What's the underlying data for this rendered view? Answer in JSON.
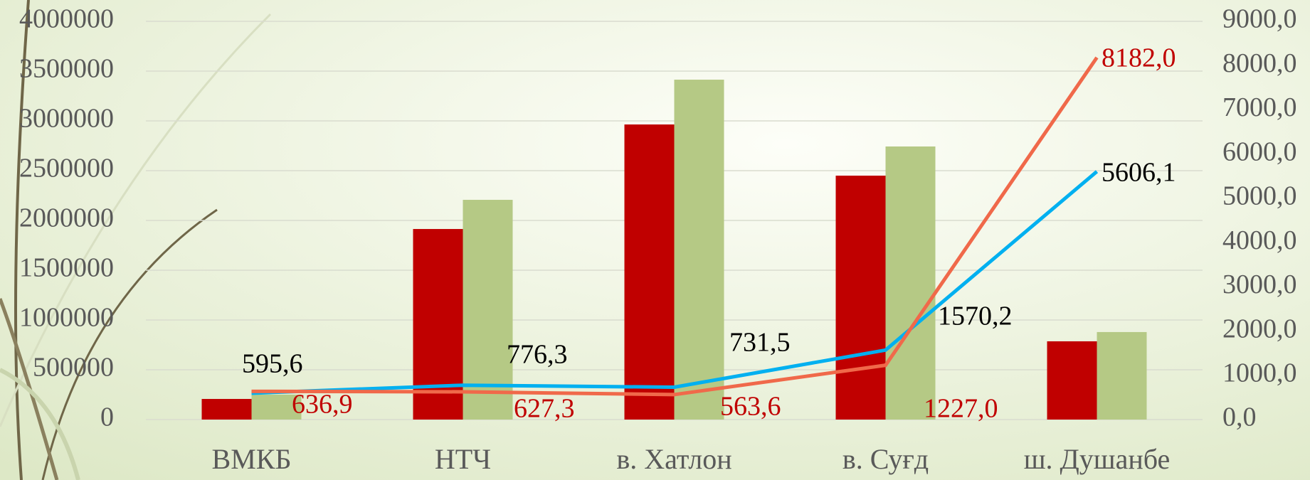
{
  "chart_data": {
    "type": "bar-line",
    "categories": [
      "ВМКБ",
      "НТЧ",
      "в. Хатлон",
      "в. Суғд",
      "ш. Душанбе"
    ],
    "series": [
      {
        "type": "bar",
        "color": "#c00000",
        "values": [
          207000,
          1914000,
          2964000,
          2450000,
          786000
        ]
      },
      {
        "type": "bar",
        "color": "#b5c985",
        "values": [
          250000,
          2207000,
          3414000,
          2743000,
          879000
        ]
      },
      {
        "type": "line",
        "axis": "y2",
        "color": "#00b0f0",
        "values": [
          595.6,
          776.3,
          731.5,
          1570.2,
          5606.1
        ],
        "value_labels": [
          "595,6",
          "776,3",
          "731,5",
          "1570,2",
          "5606,1"
        ],
        "label_color": "#000000"
      },
      {
        "type": "line",
        "axis": "y2",
        "color": "#f0694a",
        "values": [
          636.9,
          627.3,
          563.6,
          1227.0,
          8182.0
        ],
        "value_labels": [
          "636,9",
          "627,3",
          "563,6",
          "1227,0",
          "8182,0"
        ],
        "label_color": "#c00000"
      }
    ],
    "ylim": [
      0,
      4000000
    ],
    "yticks": [
      0,
      500000,
      1000000,
      1500000,
      2000000,
      2500000,
      3000000,
      3500000,
      4000000
    ],
    "y2lim": [
      0,
      9000
    ],
    "y2ticks": [
      {
        "value": 0,
        "label": "0,0"
      },
      {
        "value": 1000,
        "label": "1000,0"
      },
      {
        "value": 2000,
        "label": "2000,0"
      },
      {
        "value": 3000,
        "label": "3000,0"
      },
      {
        "value": 4000,
        "label": "4000,0"
      },
      {
        "value": 5000,
        "label": "5000,0"
      },
      {
        "value": 6000,
        "label": "6000,0"
      },
      {
        "value": 7000,
        "label": "7000,0"
      },
      {
        "value": 8000,
        "label": "8000,0"
      },
      {
        "value": 9000,
        "label": "9000,0"
      }
    ],
    "grid": true
  }
}
